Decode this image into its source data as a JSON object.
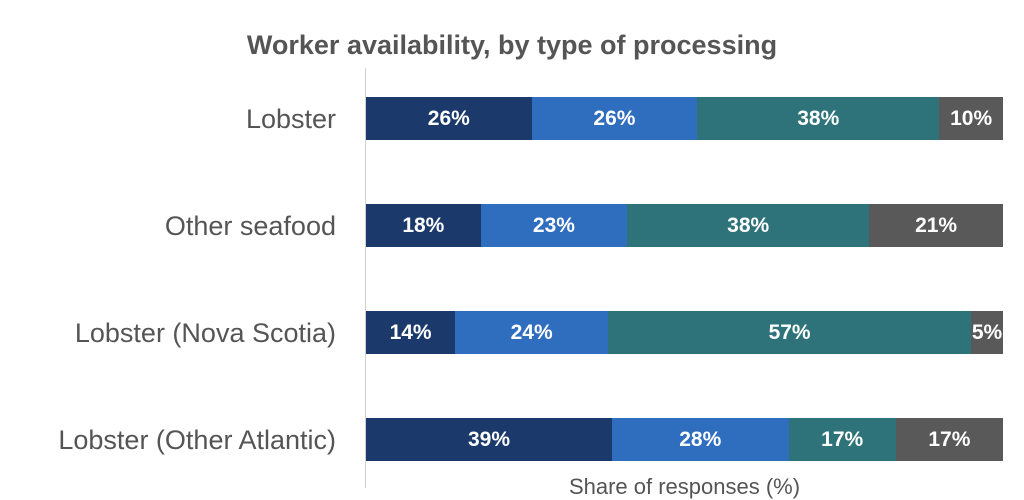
{
  "chart_data": {
    "type": "bar",
    "orientation": "horizontal",
    "stacked": true,
    "title": "Worker availability, by type of processing",
    "xlabel": "Share of responses (%)",
    "ylabel": "",
    "xlim": [
      0,
      100
    ],
    "categories": [
      "Lobster",
      "Other seafood",
      "Lobster (Nova Scotia)",
      "Lobster (Other Atlantic)"
    ],
    "series": [
      {
        "name": "Series 1",
        "color": "#1b3a6b",
        "values": [
          26,
          18,
          14,
          39
        ]
      },
      {
        "name": "Series 2",
        "color": "#2f6dbf",
        "values": [
          26,
          23,
          24,
          28
        ]
      },
      {
        "name": "Series 3",
        "color": "#2f737a",
        "values": [
          38,
          38,
          57,
          17
        ]
      },
      {
        "name": "Series 4",
        "color": "#595959",
        "values": [
          10,
          21,
          5,
          17
        ]
      }
    ],
    "value_suffix": "%"
  }
}
